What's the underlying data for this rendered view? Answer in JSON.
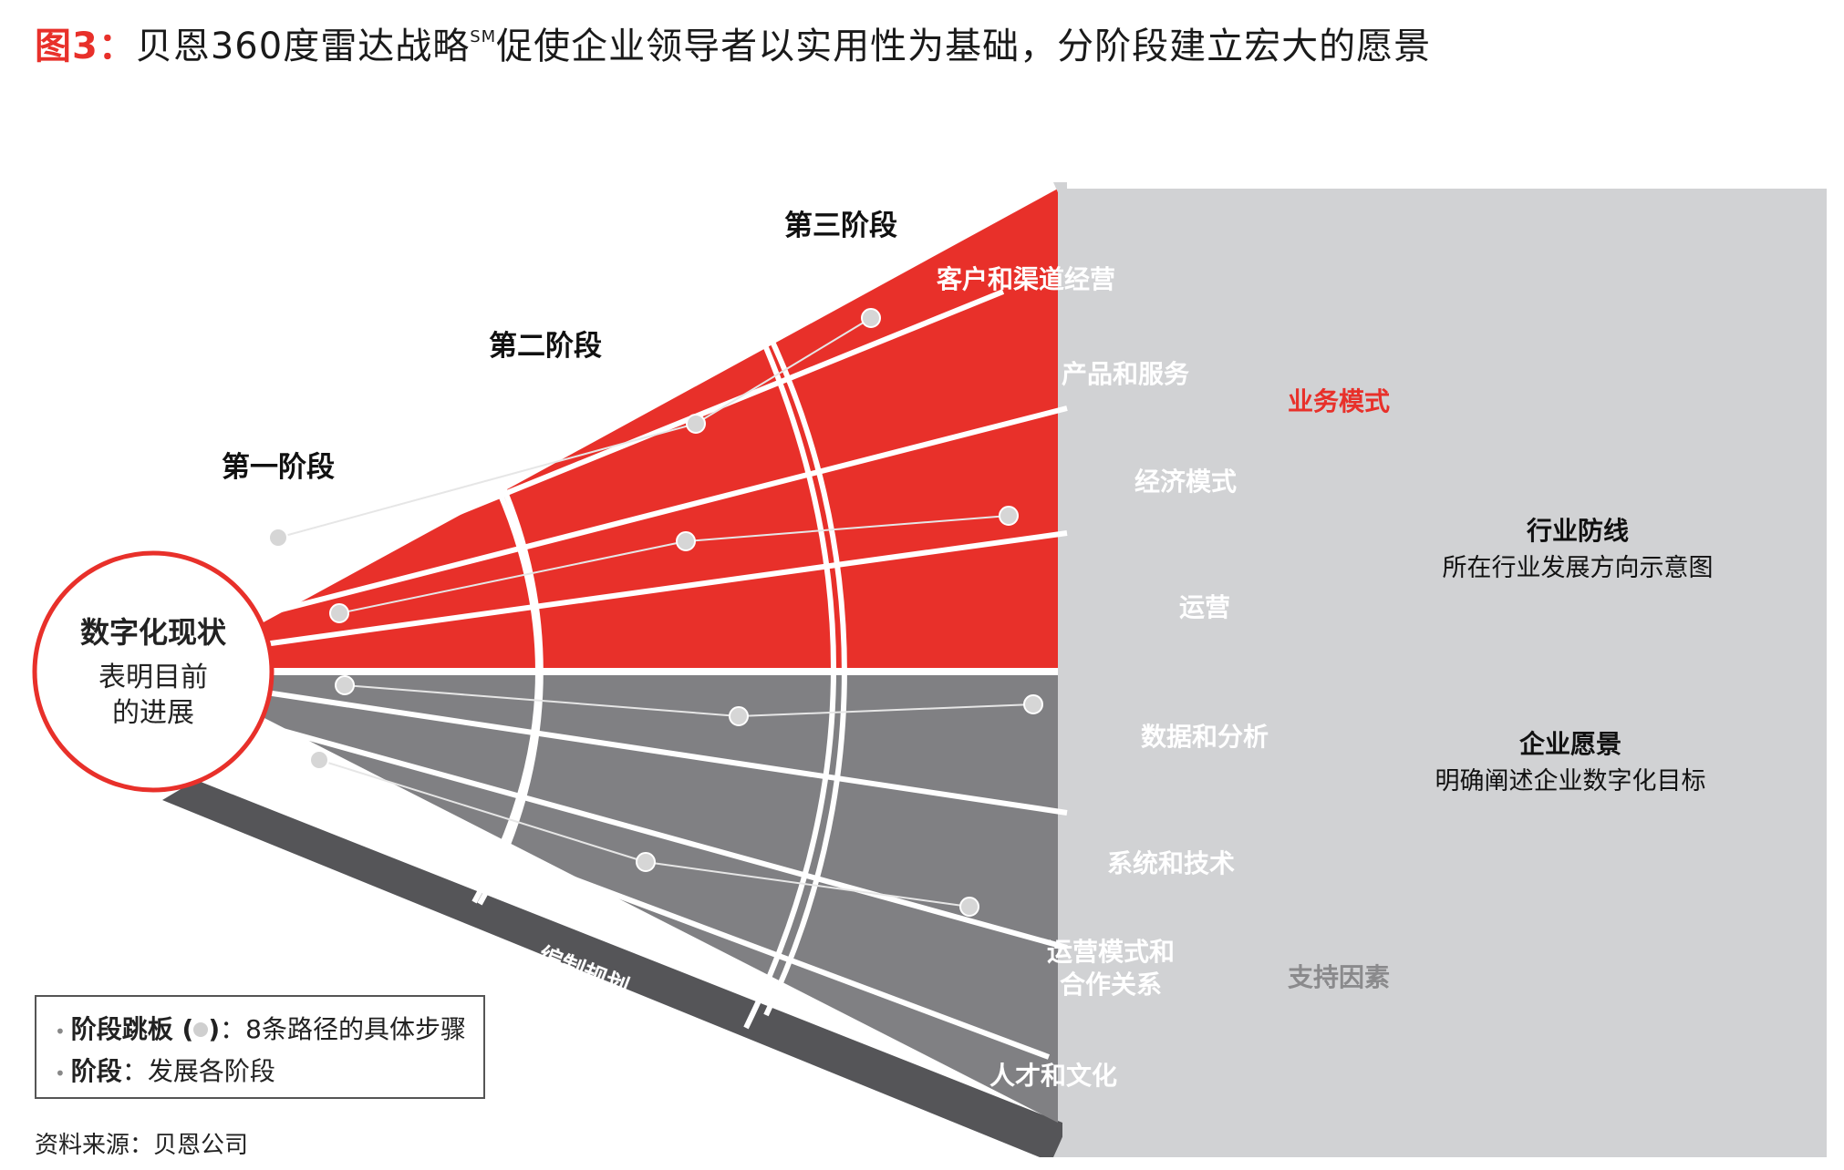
{
  "title": {
    "prefix": "图3：",
    "main": "贝恩360度雷达战略",
    "superscript": "SM",
    "rest": "促使企业领导者以实用性为基础，分阶段建立宏大的愿景"
  },
  "center": {
    "heading": "数字化现状",
    "line1": "表明目前",
    "line2": "的进展"
  },
  "stages": [
    "第一阶段",
    "第二阶段",
    "第三阶段"
  ],
  "business_paths": [
    "客户和渠道经营",
    "产品和服务",
    "经济模式",
    "运营"
  ],
  "support_paths": [
    "数据和分析",
    "系统和技术",
    "运营模式和",
    "合作关系",
    "人才和文化"
  ],
  "group_labels": {
    "business": "业务模式",
    "support": "支持因素"
  },
  "right_panel": {
    "frontier_heading": "行业防线",
    "frontier_sub": "所在行业发展方向示意图",
    "vision_heading": "企业愿景",
    "vision_sub": "明确阐述企业数字化目标"
  },
  "base_label": "编制规划",
  "legend": {
    "item1_bold": "阶段跳板 (",
    "item1_close": ")",
    "item1_rest": "：8条路径的具体步骤",
    "item2_bold": "阶段",
    "item2_rest": "：发展各阶段"
  },
  "source": "资料来源：贝恩公司",
  "colors": {
    "red": "#e8302a",
    "gray": "#808083",
    "dark_gray": "#555558",
    "panel": "#d1d2d4",
    "dot": "#d6d6d6"
  }
}
